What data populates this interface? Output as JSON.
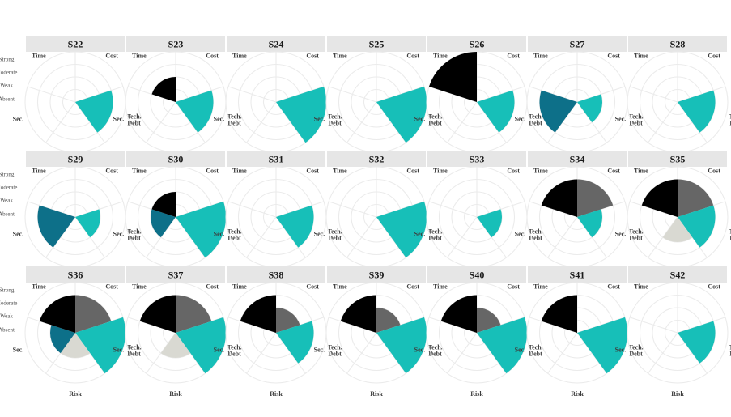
{
  "chart_data": {
    "type": "polar-bar",
    "layout": "facet-grid",
    "levels": [
      "Absent",
      "Weak",
      "Moderate",
      "Strong"
    ],
    "dimensions": [
      "Cost",
      "Tech. Debt",
      "Risk",
      "Sec.",
      "Time"
    ],
    "dimension_label_lines": {
      "Cost": [
        "Cost"
      ],
      "Tech. Debt": [
        "Tech.",
        "Debt"
      ],
      "Risk": [
        "Risk"
      ],
      "Sec.": [
        "Sec."
      ],
      "Time": [
        "Time"
      ]
    },
    "dimension_colors": {
      "Cost": "#666666",
      "Tech. Debt": "#17bfb8",
      "Risk": "#d9d9d2",
      "Sec.": "#0d7089",
      "Time": "#000000"
    },
    "level_scale": {
      "Absent": 0,
      "Weak": 1,
      "Moderate": 2,
      "Strong": 3
    },
    "panels": [
      {
        "title": "S22",
        "values": {
          "Cost": 0,
          "Tech. Debt": 2,
          "Risk": 0,
          "Sec.": 0,
          "Time": 0
        }
      },
      {
        "title": "S23",
        "values": {
          "Cost": 0,
          "Tech. Debt": 2,
          "Risk": 0,
          "Sec.": 0,
          "Time": 1
        }
      },
      {
        "title": "S24",
        "values": {
          "Cost": 0,
          "Tech. Debt": 3,
          "Risk": 0,
          "Sec.": 0,
          "Time": 0
        }
      },
      {
        "title": "S25",
        "values": {
          "Cost": 0,
          "Tech. Debt": 3,
          "Risk": 0,
          "Sec.": 0,
          "Time": 0
        }
      },
      {
        "title": "S26",
        "values": {
          "Cost": 0,
          "Tech. Debt": 2,
          "Risk": 0,
          "Sec.": 0,
          "Time": 3
        }
      },
      {
        "title": "S27",
        "values": {
          "Cost": 0,
          "Tech. Debt": 1,
          "Risk": 0,
          "Sec.": 2,
          "Time": 0
        }
      },
      {
        "title": "S28",
        "values": {
          "Cost": 0,
          "Tech. Debt": 2,
          "Risk": 0,
          "Sec.": 0,
          "Time": 0
        }
      },
      {
        "title": "S29",
        "values": {
          "Cost": 0,
          "Tech. Debt": 1,
          "Risk": 0,
          "Sec.": 2,
          "Time": 0
        }
      },
      {
        "title": "S30",
        "values": {
          "Cost": 0,
          "Tech. Debt": 3,
          "Risk": 0,
          "Sec.": 1,
          "Time": 1
        }
      },
      {
        "title": "S31",
        "values": {
          "Cost": 0,
          "Tech. Debt": 2,
          "Risk": 0,
          "Sec.": 0,
          "Time": 0
        }
      },
      {
        "title": "S32",
        "values": {
          "Cost": 0,
          "Tech. Debt": 3,
          "Risk": 0,
          "Sec.": 0,
          "Time": 0
        }
      },
      {
        "title": "S33",
        "values": {
          "Cost": 0,
          "Tech. Debt": 1,
          "Risk": 0,
          "Sec.": 0,
          "Time": 0
        }
      },
      {
        "title": "S34",
        "values": {
          "Cost": 2,
          "Tech. Debt": 1,
          "Risk": 0,
          "Sec.": 0,
          "Time": 2
        }
      },
      {
        "title": "S35",
        "values": {
          "Cost": 2,
          "Tech. Debt": 2,
          "Risk": 1,
          "Sec.": 0,
          "Time": 2
        }
      },
      {
        "title": "S36",
        "values": {
          "Cost": 2,
          "Tech. Debt": 3,
          "Risk": 1,
          "Sec.": 1,
          "Time": 2
        }
      },
      {
        "title": "S37",
        "values": {
          "Cost": 2,
          "Tech. Debt": 3,
          "Risk": 1,
          "Sec.": 0,
          "Time": 2
        }
      },
      {
        "title": "S38",
        "values": {
          "Cost": 1,
          "Tech. Debt": 2,
          "Risk": 0,
          "Sec.": 0,
          "Time": 2
        }
      },
      {
        "title": "S39",
        "values": {
          "Cost": 1,
          "Tech. Debt": 3,
          "Risk": 0,
          "Sec.": 0,
          "Time": 2
        }
      },
      {
        "title": "S40",
        "values": {
          "Cost": 1,
          "Tech. Debt": 3,
          "Risk": 0,
          "Sec.": 0,
          "Time": 2
        }
      },
      {
        "title": "S41",
        "values": {
          "Cost": 0,
          "Tech. Debt": 3,
          "Risk": 0,
          "Sec.": 0,
          "Time": 2
        }
      },
      {
        "title": "S42",
        "values": {
          "Cost": 0,
          "Tech. Debt": 2,
          "Risk": 0,
          "Sec.": 0,
          "Time": 0
        }
      }
    ],
    "columns": 7,
    "rows": 3,
    "level_labels_on_column": 0
  }
}
